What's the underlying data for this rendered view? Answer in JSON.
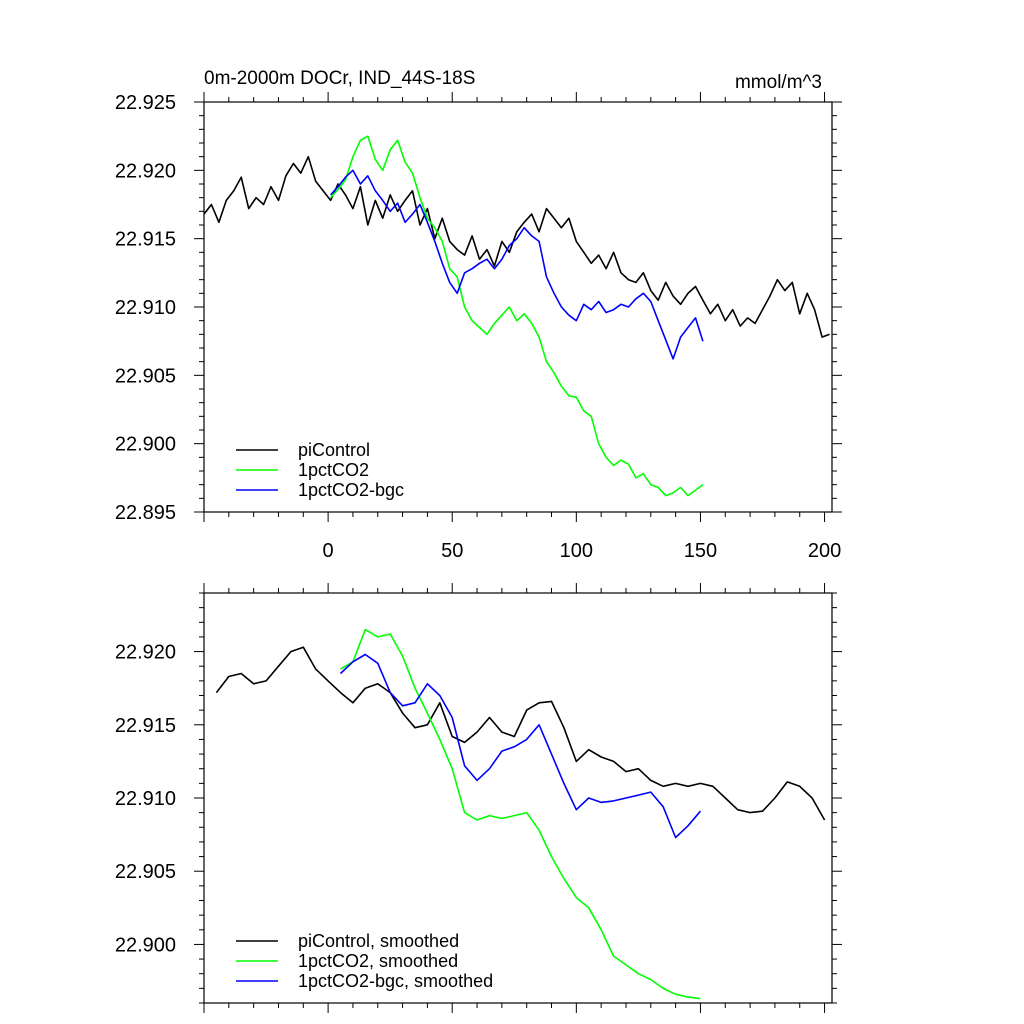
{
  "figure": {
    "units": "mmol/m^3"
  },
  "chart_data": [
    {
      "type": "line",
      "title": "0m-2000m DOCr, IND_44S-18S",
      "units_label": "mmol/m^3",
      "xlabel": "",
      "ylabel": "",
      "xlim": [
        -50,
        203
      ],
      "ylim": [
        22.895,
        22.925
      ],
      "xticks": [
        0,
        50,
        100,
        150,
        200
      ],
      "xtick_labels": [
        "0",
        "50",
        "100",
        "150",
        "200"
      ],
      "yticks": [
        22.895,
        22.9,
        22.905,
        22.91,
        22.915,
        22.92,
        22.925
      ],
      "ytick_labels": [
        "22.895",
        "22.900",
        "22.905",
        "22.910",
        "22.915",
        "22.920",
        "22.925"
      ],
      "legend_position": "bottom-left",
      "series": [
        {
          "name": "piControl",
          "color": "#000000",
          "x": [
            -50,
            -47,
            -44,
            -41,
            -38,
            -35,
            -32,
            -29,
            -26,
            -23,
            -20,
            -17,
            -14,
            -11,
            -8,
            -5,
            -2,
            1,
            4,
            7,
            10,
            13,
            16,
            19,
            22,
            25,
            28,
            31,
            34,
            37,
            40,
            43,
            46,
            49,
            52,
            55,
            58,
            61,
            64,
            67,
            70,
            73,
            76,
            79,
            82,
            85,
            88,
            91,
            94,
            97,
            100,
            103,
            106,
            109,
            112,
            115,
            118,
            121,
            124,
            127,
            130,
            133,
            136,
            139,
            142,
            145,
            148,
            151,
            154,
            157,
            160,
            163,
            166,
            169,
            172,
            175,
            178,
            181,
            184,
            187,
            190,
            193,
            196,
            199,
            202
          ],
          "y": [
            22.9168,
            22.9175,
            22.9162,
            22.9178,
            22.9185,
            22.9195,
            22.9172,
            22.918,
            22.9175,
            22.9188,
            22.9178,
            22.9196,
            22.9205,
            22.9198,
            22.921,
            22.9192,
            22.9185,
            22.9178,
            22.919,
            22.9182,
            22.9172,
            22.9188,
            22.916,
            22.9178,
            22.9165,
            22.9182,
            22.917,
            22.9178,
            22.9185,
            22.916,
            22.9172,
            22.915,
            22.9165,
            22.9148,
            22.9142,
            22.9138,
            22.9152,
            22.9135,
            22.9142,
            22.913,
            22.9148,
            22.914,
            22.9155,
            22.9162,
            22.9168,
            22.9155,
            22.9172,
            22.9165,
            22.9158,
            22.9165,
            22.9148,
            22.914,
            22.9132,
            22.9138,
            22.9128,
            22.914,
            22.9125,
            22.912,
            22.9118,
            22.9125,
            22.9112,
            22.9105,
            22.9118,
            22.9108,
            22.9102,
            22.911,
            22.9115,
            22.9105,
            22.9095,
            22.9102,
            22.909,
            22.9098,
            22.9086,
            22.9092,
            22.9088,
            22.9098,
            22.9108,
            22.912,
            22.9112,
            22.9118,
            22.9095,
            22.911,
            22.9098,
            22.9078,
            22.908
          ]
        },
        {
          "name": "1pctCO2",
          "color": "#00ff00",
          "x": [
            1,
            4,
            7,
            10,
            13,
            16,
            19,
            22,
            25,
            28,
            31,
            34,
            37,
            40,
            43,
            46,
            49,
            52,
            55,
            58,
            61,
            64,
            67,
            70,
            73,
            76,
            79,
            82,
            85,
            88,
            91,
            94,
            97,
            100,
            103,
            106,
            109,
            112,
            115,
            118,
            121,
            124,
            127,
            130,
            133,
            136,
            139,
            142,
            145,
            148,
            151
          ],
          "y": [
            22.918,
            22.9186,
            22.9193,
            22.921,
            22.9222,
            22.9225,
            22.9208,
            22.92,
            22.9215,
            22.9222,
            22.9206,
            22.9198,
            22.918,
            22.9165,
            22.9158,
            22.9148,
            22.9128,
            22.9122,
            22.91,
            22.909,
            22.9085,
            22.908,
            22.9088,
            22.9094,
            22.91,
            22.909,
            22.9095,
            22.9088,
            22.9078,
            22.906,
            22.9052,
            22.9042,
            22.9035,
            22.9034,
            22.9024,
            22.902,
            22.9,
            22.899,
            22.8984,
            22.8988,
            22.8985,
            22.8975,
            22.8978,
            22.897,
            22.8968,
            22.8962,
            22.8964,
            22.8968,
            22.8962,
            22.8966,
            22.897
          ]
        },
        {
          "name": "1pctCO2-bgc",
          "color": "#0000ff",
          "x": [
            1,
            4,
            7,
            10,
            13,
            16,
            19,
            22,
            25,
            28,
            31,
            34,
            37,
            40,
            43,
            46,
            49,
            52,
            55,
            58,
            61,
            64,
            67,
            70,
            73,
            76,
            79,
            82,
            85,
            88,
            91,
            94,
            97,
            100,
            103,
            106,
            109,
            112,
            115,
            118,
            121,
            124,
            127,
            130,
            133,
            136,
            139,
            142,
            145,
            148,
            151
          ],
          "y": [
            22.9182,
            22.9188,
            22.9195,
            22.92,
            22.919,
            22.9196,
            22.9185,
            22.9178,
            22.917,
            22.9176,
            22.9162,
            22.9168,
            22.9175,
            22.9162,
            22.9148,
            22.9132,
            22.9118,
            22.911,
            22.9125,
            22.9128,
            22.9132,
            22.9135,
            22.9128,
            22.9135,
            22.9145,
            22.915,
            22.9158,
            22.9152,
            22.9148,
            22.9122,
            22.911,
            22.91,
            22.9094,
            22.909,
            22.9102,
            22.9098,
            22.9104,
            22.9096,
            22.9098,
            22.9102,
            22.91,
            22.9106,
            22.911,
            22.9104,
            22.909,
            22.9076,
            22.9062,
            22.9078,
            22.9085,
            22.9092,
            22.9075
          ]
        }
      ]
    },
    {
      "type": "line",
      "title": "",
      "xlabel": "",
      "ylabel": "",
      "xlim": [
        -50,
        203
      ],
      "ylim": [
        22.896,
        22.924
      ],
      "xticks": [
        0,
        50,
        100,
        150,
        200
      ],
      "yticks": [
        22.9,
        22.905,
        22.91,
        22.915,
        22.92
      ],
      "ytick_labels": [
        "22.900",
        "22.905",
        "22.910",
        "22.915",
        "22.920"
      ],
      "legend_position": "bottom-left",
      "series": [
        {
          "name": "piControl, smoothed",
          "color": "#000000",
          "x": [
            -45,
            -40,
            -35,
            -30,
            -25,
            -20,
            -15,
            -10,
            -5,
            0,
            5,
            10,
            15,
            20,
            25,
            30,
            35,
            40,
            45,
            50,
            55,
            60,
            65,
            70,
            75,
            80,
            85,
            90,
            95,
            100,
            105,
            110,
            115,
            120,
            125,
            130,
            135,
            140,
            145,
            150,
            155,
            160,
            165,
            170,
            175,
            180,
            185,
            190,
            195,
            200
          ],
          "y": [
            22.9172,
            22.9183,
            22.9185,
            22.9178,
            22.918,
            22.919,
            22.92,
            22.9203,
            22.9188,
            22.918,
            22.9172,
            22.9165,
            22.9175,
            22.9178,
            22.9172,
            22.9158,
            22.9148,
            22.915,
            22.9165,
            22.9142,
            22.9138,
            22.9145,
            22.9155,
            22.9145,
            22.9142,
            22.916,
            22.9165,
            22.9166,
            22.9148,
            22.9125,
            22.9133,
            22.9128,
            22.9125,
            22.9118,
            22.912,
            22.9112,
            22.9108,
            22.911,
            22.9108,
            22.911,
            22.9108,
            22.91,
            22.9092,
            22.909,
            22.9091,
            22.91,
            22.9111,
            22.9108,
            22.91,
            22.9085
          ]
        },
        {
          "name": "1pctCO2, smoothed",
          "color": "#00ff00",
          "x": [
            5,
            10,
            15,
            20,
            25,
            30,
            35,
            40,
            45,
            50,
            55,
            60,
            65,
            70,
            75,
            80,
            85,
            90,
            95,
            100,
            105,
            110,
            115,
            120,
            125,
            130,
            135,
            140,
            145,
            150
          ],
          "y": [
            22.9188,
            22.9193,
            22.9215,
            22.921,
            22.9212,
            22.9197,
            22.9175,
            22.9158,
            22.914,
            22.912,
            22.909,
            22.9085,
            22.9088,
            22.9086,
            22.9088,
            22.909,
            22.9078,
            22.906,
            22.9045,
            22.9032,
            22.9025,
            22.901,
            22.8992,
            22.8986,
            22.898,
            22.8976,
            22.897,
            22.8966,
            22.8964,
            22.8963
          ]
        },
        {
          "name": "1pctCO2-bgc, smoothed",
          "color": "#0000ff",
          "x": [
            5,
            10,
            15,
            20,
            25,
            30,
            35,
            40,
            45,
            50,
            55,
            60,
            65,
            70,
            75,
            80,
            85,
            90,
            95,
            100,
            105,
            110,
            115,
            120,
            125,
            130,
            135,
            140,
            145,
            150
          ],
          "y": [
            22.9185,
            22.9193,
            22.9198,
            22.9192,
            22.9172,
            22.9163,
            22.9165,
            22.9178,
            22.917,
            22.9155,
            22.9122,
            22.9112,
            22.912,
            22.9132,
            22.9135,
            22.914,
            22.915,
            22.913,
            22.911,
            22.9092,
            22.91,
            22.9097,
            22.9098,
            22.91,
            22.9102,
            22.9104,
            22.9094,
            22.9073,
            22.9081,
            22.9091
          ]
        }
      ]
    }
  ]
}
